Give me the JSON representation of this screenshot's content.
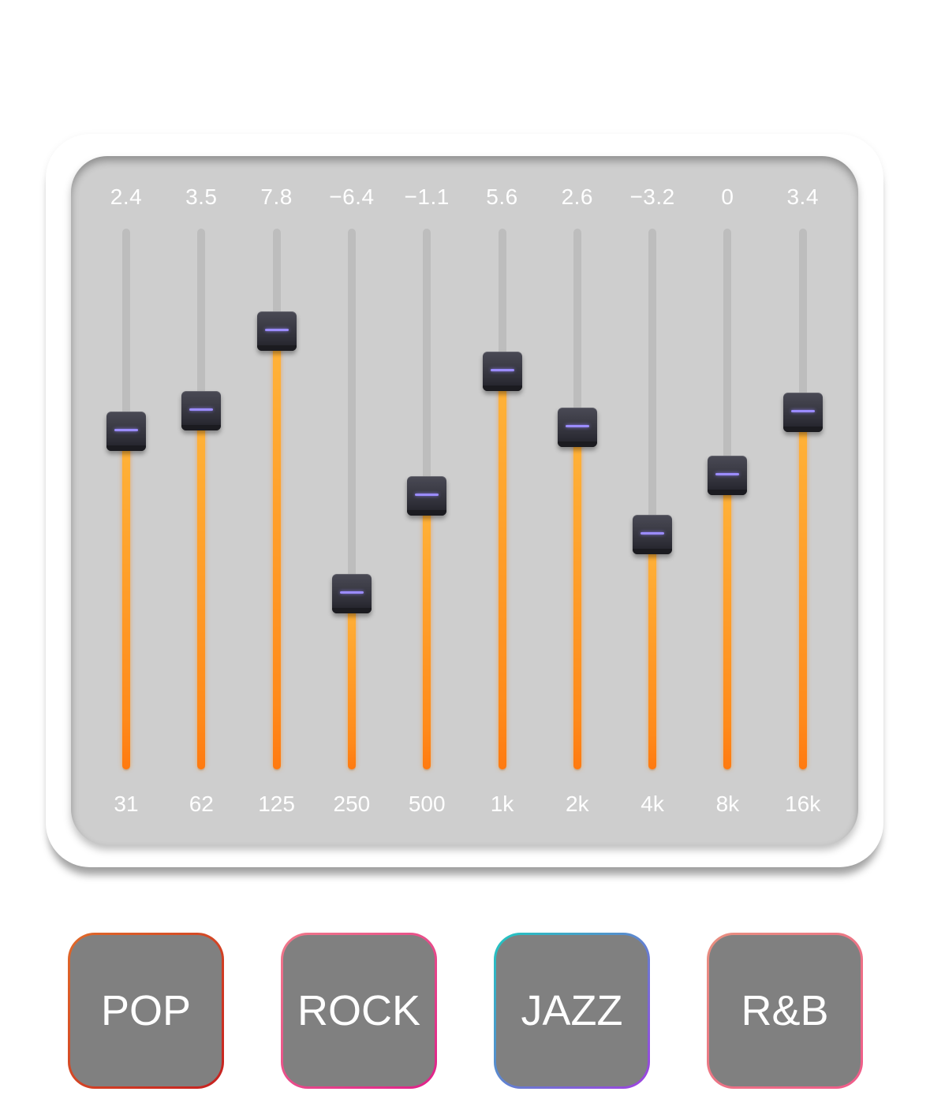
{
  "equalizer": {
    "bands": [
      {
        "freq": "31",
        "value": 2.4,
        "label": "2.4"
      },
      {
        "freq": "62",
        "value": 3.5,
        "label": "3.5"
      },
      {
        "freq": "125",
        "value": 7.8,
        "label": "7.8"
      },
      {
        "freq": "250",
        "value": -6.4,
        "label": "−6.4"
      },
      {
        "freq": "500",
        "value": -1.1,
        "label": "−1.1"
      },
      {
        "freq": "1k",
        "value": 5.6,
        "label": "5.6"
      },
      {
        "freq": "2k",
        "value": 2.6,
        "label": "2.6"
      },
      {
        "freq": "4k",
        "value": -3.2,
        "label": "−3.2"
      },
      {
        "freq": "8k",
        "value": 0,
        "label": "0"
      },
      {
        "freq": "16k",
        "value": 3.4,
        "label": "3.4"
      }
    ],
    "fill_color": "#ff8a1a",
    "thumb_color": "#2f2f38",
    "thumb_indicator_color": "#9b8cff"
  },
  "presets": [
    {
      "label": "POP",
      "border_from": "#e06a2a",
      "border_to": "#c62020"
    },
    {
      "label": "ROCK",
      "border_from": "#f07a8a",
      "border_to": "#e0208a"
    },
    {
      "label": "JAZZ",
      "border_from": "#20c8c0",
      "border_to": "#a040e0"
    },
    {
      "label": "R&B",
      "border_from": "#e89080",
      "border_to": "#f05a8a"
    }
  ]
}
